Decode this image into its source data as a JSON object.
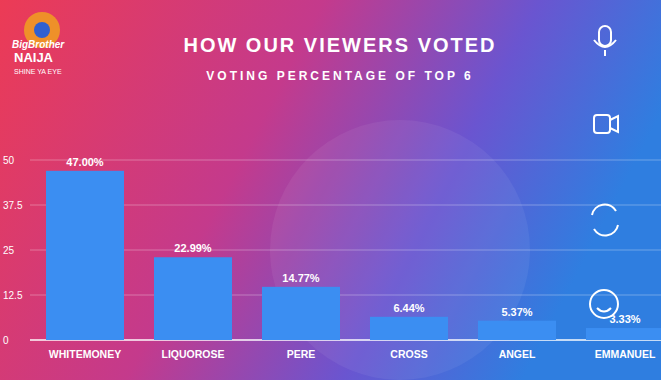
{
  "logo": {
    "brand": "BigBrother",
    "name": "NAIJA",
    "tagline": "SHINE YA EYE"
  },
  "chart_data": {
    "type": "bar",
    "title": "HOW OUR VIEWERS VOTED",
    "subtitle": "VOTING PERCENTAGE OF TOP 6",
    "categories": [
      "WHITEMONEY",
      "LIQUOROSE",
      "PERE",
      "CROSS",
      "ANGEL",
      "EMMANUEL"
    ],
    "values": [
      47,
      22.99,
      14.77,
      6.44,
      5.37,
      3.33
    ],
    "value_labels": [
      "47.00%",
      "22.99%",
      "14.77%",
      "6.44%",
      "5.37%",
      "3.33%"
    ],
    "color": "#3b8ef2",
    "ylim": [
      0,
      50
    ],
    "yticks": [
      0,
      12.5,
      25,
      37.5,
      50
    ],
    "grid": true,
    "data_labels": true
  }
}
